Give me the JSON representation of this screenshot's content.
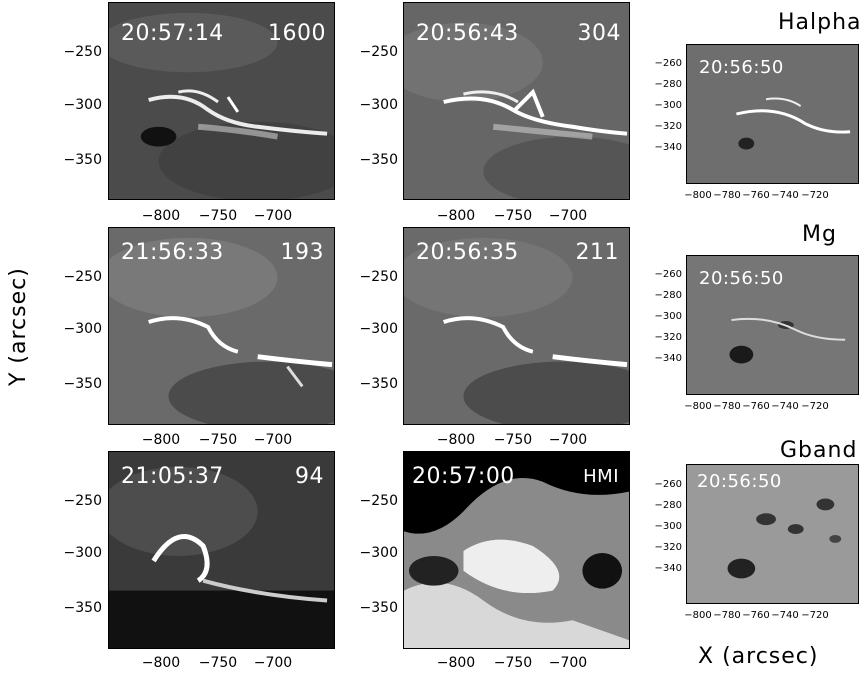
{
  "panels": [
    {
      "timestamp": "20:57:14",
      "channel": "1600",
      "tone": "dark-gray"
    },
    {
      "timestamp": "20:56:43",
      "channel": "304",
      "tone": "mid-gray"
    },
    {
      "timestamp": "21:56:33",
      "channel": "193",
      "tone": "mid-gray"
    },
    {
      "timestamp": "20:56:35",
      "channel": "211",
      "tone": "mid-gray"
    },
    {
      "timestamp": "21:05:37",
      "channel": "94",
      "tone": "dark"
    },
    {
      "timestamp": "20:57:00",
      "channel": "HMI",
      "tone": "black-white"
    }
  ],
  "side_panels": [
    {
      "title": "Halpha",
      "timestamp": "20:56:50"
    },
    {
      "title": "Mg",
      "timestamp": "20:56:50"
    },
    {
      "title": "Gband",
      "timestamp": "20:56:50"
    }
  ],
  "y_ticks_main": [
    "−250",
    "−300",
    "−350"
  ],
  "x_ticks_main": [
    "−800",
    "−750",
    "−700"
  ],
  "y_ticks_side": [
    "−260",
    "−280",
    "−300",
    "−320",
    "−340"
  ],
  "x_ticks_side": [
    "−800",
    "−780",
    "−760",
    "−740",
    "−720"
  ],
  "axis_titles": {
    "y": "Y (arcsec)",
    "x": "X (arcsec)"
  },
  "colors": {
    "frame": "#000000",
    "overlay_text": "#ffffff",
    "background": "#ffffff"
  }
}
